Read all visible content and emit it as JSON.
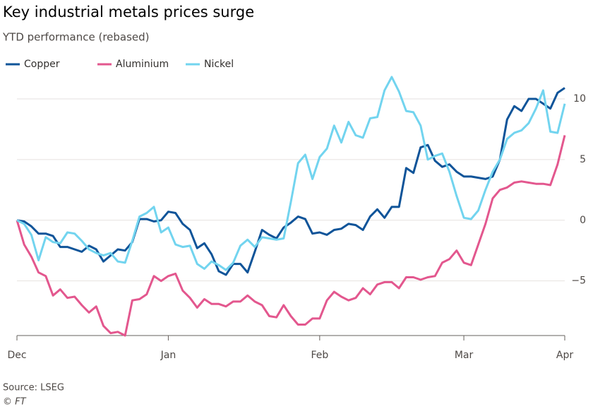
{
  "chart_data": {
    "type": "line",
    "title": "Key industrial metals prices surge",
    "subtitle": "YTD performance (rebased)",
    "source": "Source: LSEG",
    "credit": "© FT",
    "grid": true,
    "xlim": [
      0,
      76
    ],
    "xticks": [
      {
        "value": 0,
        "label": "Dec"
      },
      {
        "value": 21,
        "label": "Jan"
      },
      {
        "value": 42,
        "label": "Feb"
      },
      {
        "value": 62,
        "label": "Mar"
      },
      {
        "value": 76,
        "label": "Apr"
      }
    ],
    "ylim": [
      -9.5,
      12
    ],
    "yticks": [
      {
        "value": -5,
        "label": "−5"
      },
      0,
      5,
      10
    ],
    "x": [
      0,
      1,
      2,
      3,
      4,
      5,
      6,
      7,
      8,
      9,
      10,
      11,
      12,
      13,
      14,
      15,
      16,
      17,
      18,
      19,
      20,
      21,
      22,
      23,
      24,
      25,
      26,
      27,
      28,
      29,
      30,
      31,
      32,
      33,
      34,
      35,
      36,
      37,
      38,
      39,
      40,
      41,
      42,
      43,
      44,
      45,
      46,
      47,
      48,
      49,
      50,
      51,
      52,
      53,
      54,
      55,
      56,
      57,
      58,
      59,
      60,
      61,
      62,
      63,
      64,
      65,
      66,
      67,
      68,
      69,
      70,
      71,
      72,
      73,
      74,
      75,
      76
    ],
    "series": [
      {
        "name": "Copper",
        "color": "#0f5499",
        "values": [
          0,
          -0.1,
          -0.5,
          -1.1,
          -1.1,
          -1.3,
          -2.2,
          -2.2,
          -2.4,
          -2.6,
          -2.1,
          -2.4,
          -3.4,
          -2.9,
          -2.4,
          -2.5,
          -1.8,
          0.1,
          0.1,
          -0.1,
          0,
          0.7,
          0.6,
          -0.3,
          -0.8,
          -2.3,
          -1.9,
          -2.8,
          -4.2,
          -4.5,
          -3.6,
          -3.6,
          -4.3,
          -2.6,
          -0.8,
          -1.2,
          -1.5,
          -0.6,
          -0.2,
          0.3,
          0.1,
          -1.1,
          -1.0,
          -1.2,
          -0.8,
          -0.7,
          -0.3,
          -0.4,
          -0.8,
          0.3,
          0.9,
          0.2,
          1.1,
          1.1,
          4.3,
          3.9,
          6.0,
          6.2,
          4.9,
          4.4,
          4.6,
          4.0,
          3.6,
          3.6,
          3.5,
          3.4,
          3.6,
          5.0,
          8.3,
          9.4,
          9.0,
          10.0,
          10.0,
          9.6,
          9.2,
          10.5,
          10.9
        ]
      },
      {
        "name": "Aluminium",
        "color": "#e3578e",
        "values": [
          0,
          -2.0,
          -3.0,
          -4.3,
          -4.6,
          -6.2,
          -5.7,
          -6.4,
          -6.3,
          -7.0,
          -7.6,
          -7.1,
          -8.7,
          -9.3,
          -9.2,
          -9.5,
          -6.6,
          -6.5,
          -6.1,
          -4.6,
          -5.0,
          -4.6,
          -4.4,
          -5.8,
          -6.4,
          -7.2,
          -6.5,
          -6.9,
          -6.9,
          -7.1,
          -6.7,
          -6.7,
          -6.2,
          -6.7,
          -7.0,
          -7.9,
          -8.0,
          -7.0,
          -7.9,
          -8.6,
          -8.6,
          -8.1,
          -8.1,
          -6.6,
          -5.9,
          -6.3,
          -6.6,
          -6.4,
          -5.6,
          -6.1,
          -5.3,
          -5.1,
          -5.1,
          -5.6,
          -4.7,
          -4.7,
          -4.9,
          -4.7,
          -4.6,
          -3.5,
          -3.2,
          -2.5,
          -3.5,
          -3.7,
          -2.0,
          -0.3,
          1.8,
          2.5,
          2.7,
          3.1,
          3.2,
          3.1,
          3.0,
          3.0,
          2.9,
          4.6,
          7.0
        ]
      },
      {
        "name": "Nickel",
        "color": "#72d4ef",
        "values": [
          0,
          -0.3,
          -1.2,
          -3.3,
          -1.4,
          -1.8,
          -1.9,
          -1.0,
          -1.1,
          -1.7,
          -2.4,
          -2.7,
          -2.9,
          -2.7,
          -3.4,
          -3.5,
          -1.7,
          0.3,
          0.6,
          1.1,
          -1.0,
          -0.6,
          -2.0,
          -2.2,
          -2.1,
          -3.6,
          -4.0,
          -3.4,
          -3.7,
          -4.1,
          -3.5,
          -2.1,
          -1.6,
          -2.2,
          -1.4,
          -1.5,
          -1.6,
          -1.5,
          1.5,
          4.7,
          5.4,
          3.4,
          5.2,
          5.9,
          7.8,
          6.4,
          8.1,
          7.0,
          6.8,
          8.4,
          8.5,
          10.7,
          11.8,
          10.6,
          9.0,
          8.9,
          7.8,
          5.0,
          5.3,
          5.5,
          4.0,
          2.0,
          0.2,
          0.1,
          0.8,
          2.5,
          4.0,
          5.0,
          6.7,
          7.2,
          7.4,
          8.0,
          9.2,
          10.7,
          7.3,
          7.2,
          9.6
        ]
      }
    ]
  }
}
